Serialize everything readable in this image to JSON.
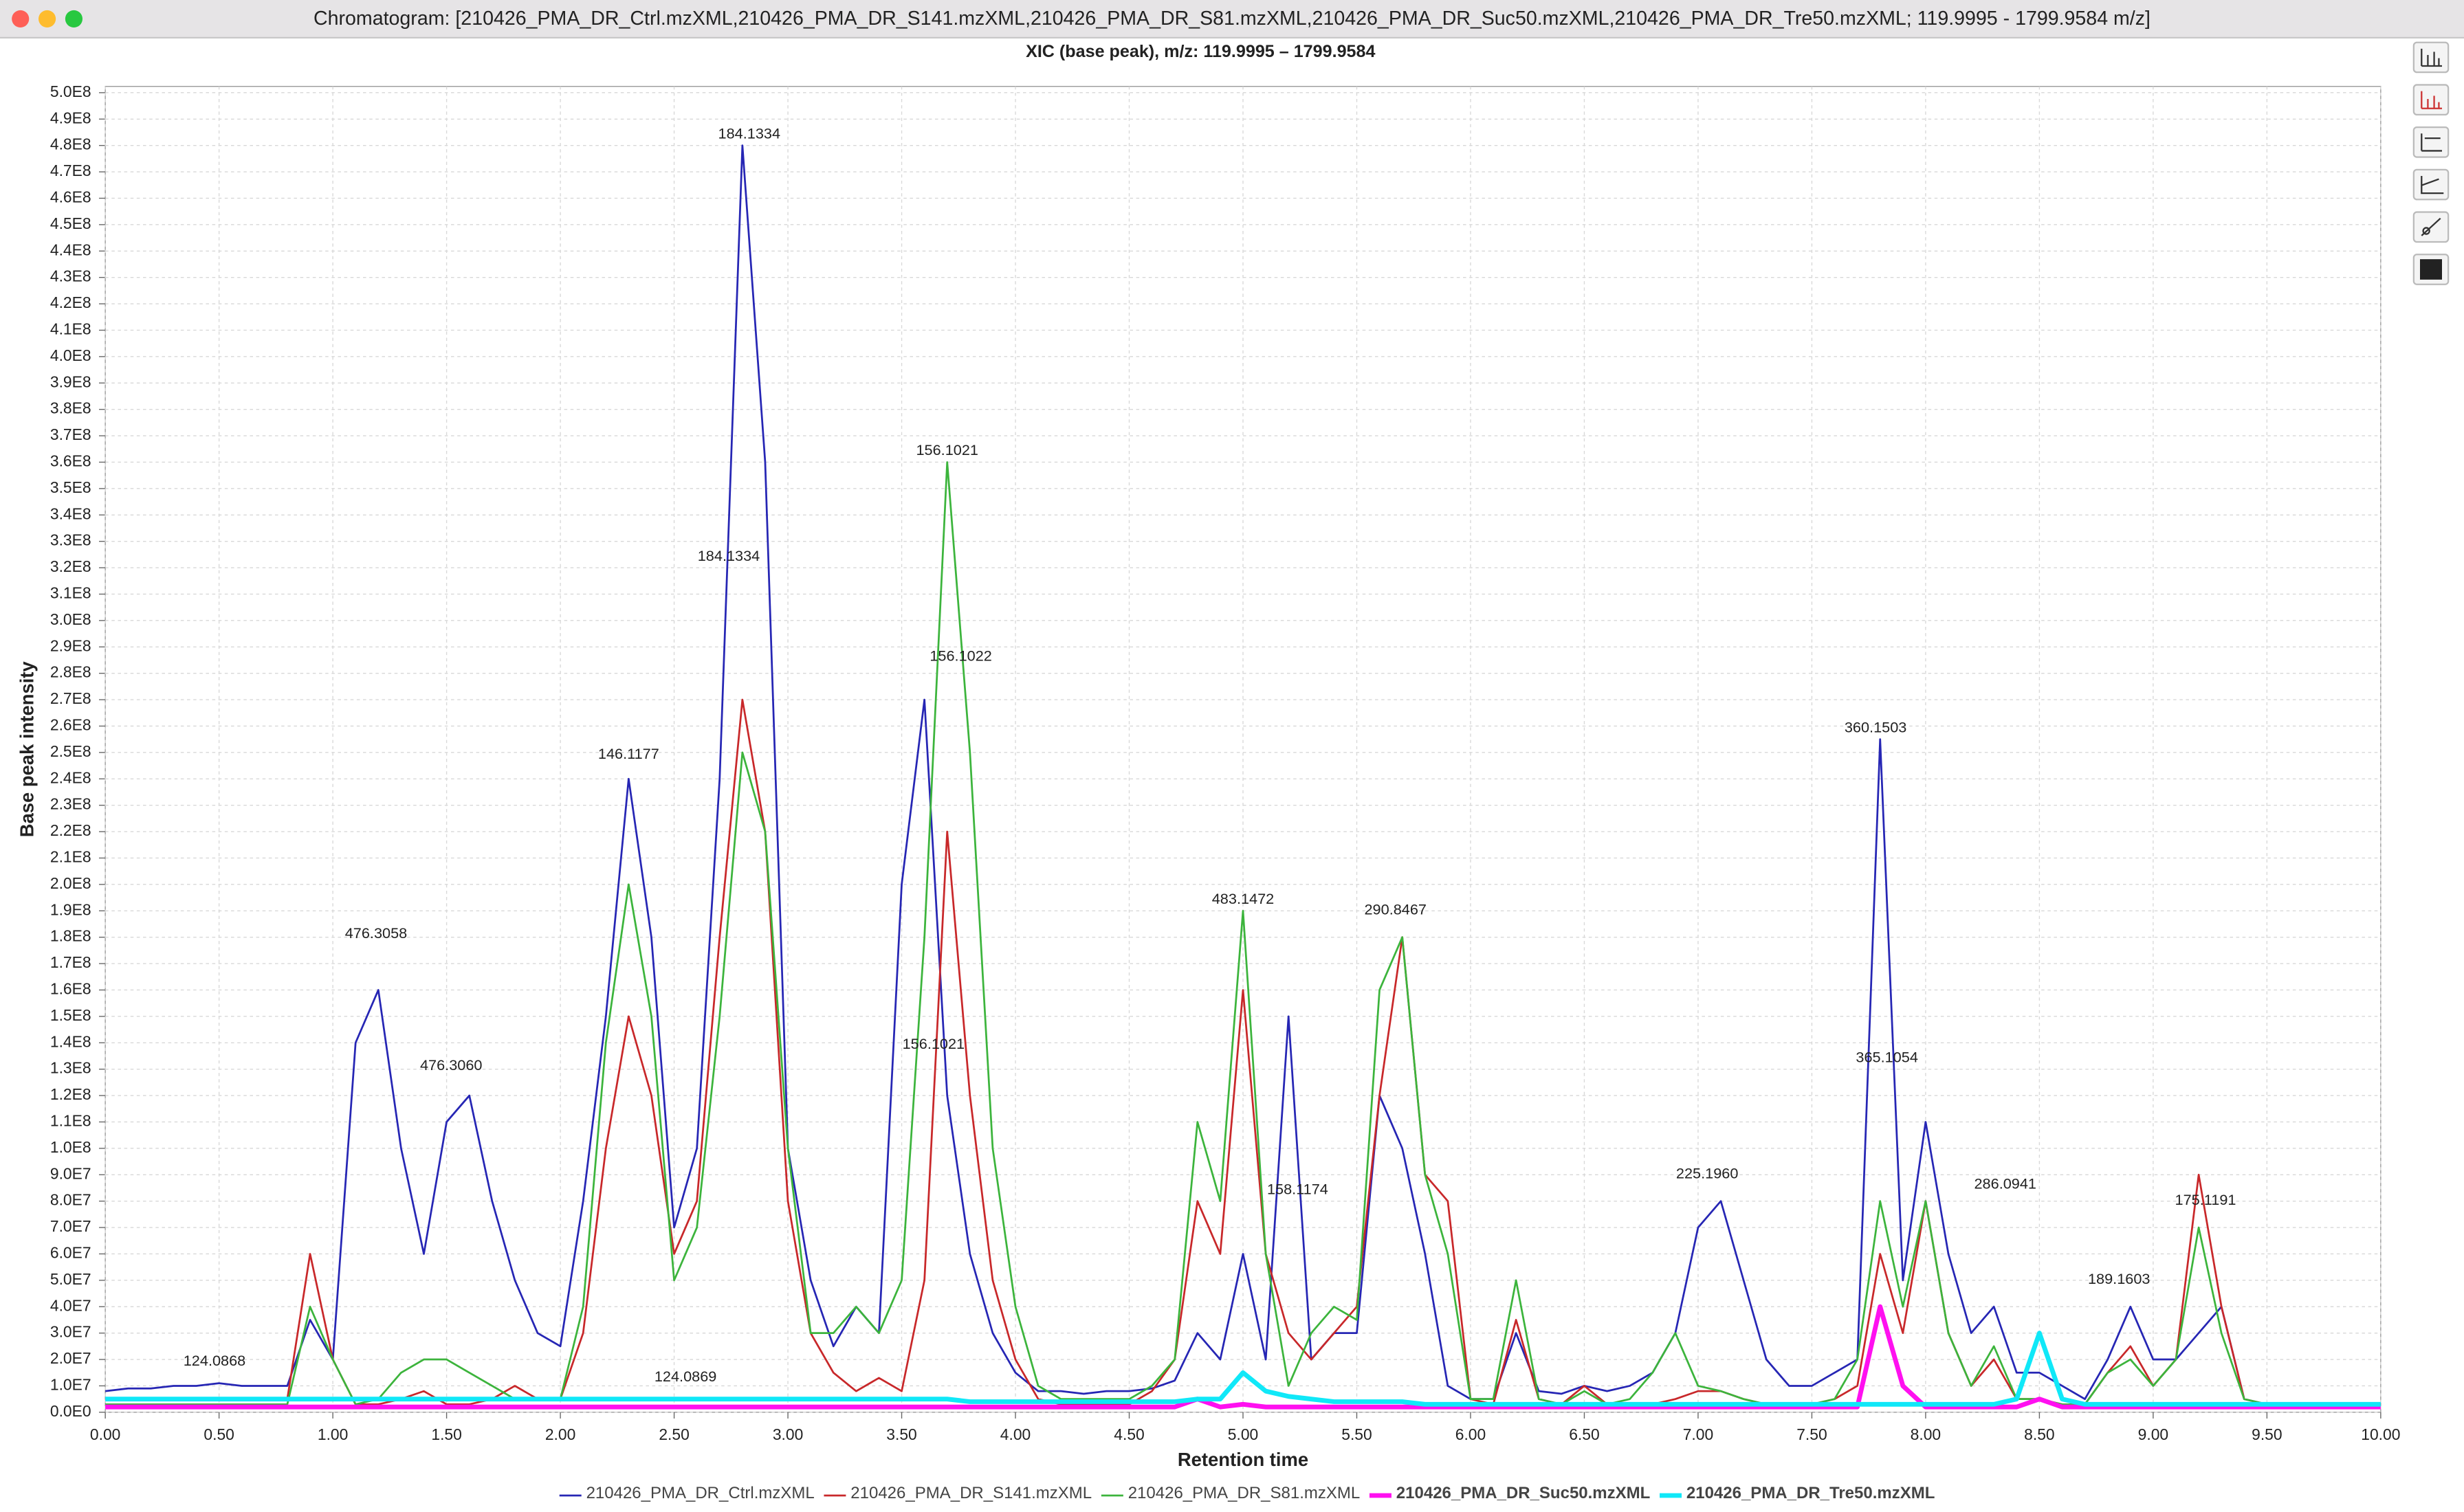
{
  "window": {
    "title": "Chromatogram: [210426_PMA_DR_Ctrl.mzXML,210426_PMA_DR_S141.mzXML,210426_PMA_DR_S81.mzXML,210426_PMA_DR_Suc50.mzXML,210426_PMA_DR_Tre50.mzXML; 119.9995 - 1799.9584 m/z]"
  },
  "chart_data": {
    "type": "line",
    "title": "XIC (base peak), m/z: 119.9995 – 1799.9584",
    "x_label": "Retention time",
    "y_label": "Base peak intensity",
    "grid": true,
    "legend": "bottom",
    "x": [
      0,
      0.1,
      0.2,
      0.3,
      0.4,
      0.5,
      0.6,
      0.7,
      0.8,
      0.9,
      1,
      1.1,
      1.2,
      1.3,
      1.4,
      1.5,
      1.6,
      1.7,
      1.8,
      1.9,
      2,
      2.1,
      2.2,
      2.3,
      2.4,
      2.5,
      2.6,
      2.7,
      2.8,
      2.9,
      3,
      3.1,
      3.2,
      3.3,
      3.4,
      3.5,
      3.6,
      3.7,
      3.8,
      3.9,
      4,
      4.1,
      4.2,
      4.3,
      4.4,
      4.5,
      4.6,
      4.7,
      4.8,
      4.9,
      5,
      5.1,
      5.2,
      5.3,
      5.4,
      5.5,
      5.6,
      5.7,
      5.8,
      5.9,
      6,
      6.1,
      6.2,
      6.3,
      6.4,
      6.5,
      6.6,
      6.7,
      6.8,
      6.9,
      7,
      7.1,
      7.2,
      7.3,
      7.4,
      7.5,
      7.6,
      7.7,
      7.8,
      7.9,
      8,
      8.1,
      8.2,
      8.3,
      8.4,
      8.5,
      8.6,
      8.7,
      8.8,
      8.9,
      9,
      9.1,
      9.2,
      9.3,
      9.4,
      9.5,
      9.6,
      9.7,
      9.8,
      9.9,
      10
    ],
    "series": [
      {
        "name": "210426_PMA_DR_Ctrl.mzXML",
        "color": "#2626b4",
        "width": 1.2,
        "values": [
          8000000.0,
          9000000.0,
          9000000.0,
          10000000.0,
          10000000.0,
          11000000.0,
          10000000.0,
          10000000.0,
          10000000.0,
          35000000.0,
          20000000.0,
          140000000.0,
          160000000.0,
          100000000.0,
          60000000.0,
          110000000.0,
          120000000.0,
          80000000.0,
          50000000.0,
          30000000.0,
          25000000.0,
          80000000.0,
          150000000.0,
          240000000.0,
          180000000.0,
          70000000.0,
          100000000.0,
          240000000.0,
          480000000.0,
          360000000.0,
          100000000.0,
          50000000.0,
          25000000.0,
          40000000.0,
          30000000.0,
          200000000.0,
          270000000.0,
          120000000.0,
          60000000.0,
          30000000.0,
          15000000.0,
          8000000.0,
          8000000.0,
          7000000.0,
          8000000.0,
          8000000.0,
          9000000.0,
          12000000.0,
          30000000.0,
          20000000.0,
          60000000.0,
          20000000.0,
          150000000.0,
          20000000.0,
          30000000.0,
          30000000.0,
          120000000.0,
          100000000.0,
          60000000.0,
          10000000.0,
          5000000.0,
          5000000.0,
          30000000.0,
          8000000.0,
          7000000.0,
          10000000.0,
          8000000.0,
          10000000.0,
          15000000.0,
          30000000.0,
          70000000.0,
          80000000.0,
          50000000.0,
          20000000.0,
          10000000.0,
          10000000.0,
          15000000.0,
          20000000.0,
          255000000.0,
          50000000.0,
          110000000.0,
          60000000.0,
          30000000.0,
          40000000.0,
          15000000.0,
          15000000.0,
          10000000.0,
          5000000.0,
          20000000.0,
          40000000.0,
          20000000.0,
          20000000.0,
          30000000.0,
          40000000.0,
          5000000.0,
          3000000.0,
          3000000.0,
          3000000.0,
          3000000.0,
          3000000.0,
          3000000.0
        ]
      },
      {
        "name": "210426_PMA_DR_S141.mzXML",
        "color": "#c8282a",
        "width": 1.2,
        "values": [
          5000000.0,
          5000000.0,
          5000000.0,
          5000000.0,
          5000000.0,
          5000000.0,
          5000000.0,
          5000000.0,
          5000000.0,
          60000000.0,
          20000000.0,
          3000000.0,
          3000000.0,
          5000000.0,
          8000000.0,
          3000000.0,
          3000000.0,
          5000000.0,
          10000000.0,
          5000000.0,
          5000000.0,
          30000000.0,
          100000000.0,
          150000000.0,
          120000000.0,
          60000000.0,
          80000000.0,
          180000000.0,
          270000000.0,
          220000000.0,
          80000000.0,
          30000000.0,
          15000000.0,
          8000000.0,
          13000000.0,
          8000000.0,
          50000000.0,
          220000000.0,
          120000000.0,
          50000000.0,
          20000000.0,
          5000000.0,
          3000000.0,
          3000000.0,
          3000000.0,
          3000000.0,
          8000000.0,
          20000000.0,
          80000000.0,
          60000000.0,
          160000000.0,
          60000000.0,
          30000000.0,
          20000000.0,
          30000000.0,
          40000000.0,
          120000000.0,
          180000000.0,
          90000000.0,
          80000000.0,
          5000000.0,
          3000000.0,
          35000000.0,
          5000000.0,
          3000000.0,
          10000000.0,
          3000000.0,
          3000000.0,
          3000000.0,
          5000000.0,
          8000000.0,
          8000000.0,
          5000000.0,
          3000000.0,
          3000000.0,
          3000000.0,
          5000000.0,
          10000000.0,
          60000000.0,
          30000000.0,
          80000000.0,
          30000000.0,
          10000000.0,
          20000000.0,
          5000000.0,
          5000000.0,
          3000000.0,
          3000000.0,
          15000000.0,
          25000000.0,
          10000000.0,
          20000000.0,
          90000000.0,
          40000000.0,
          5000000.0,
          3000000.0,
          3000000.0,
          3000000.0,
          3000000.0,
          3000000.0,
          3000000.0
        ]
      },
      {
        "name": "210426_PMA_DR_S81.mzXML",
        "color": "#3cb43c",
        "width": 1.2,
        "values": [
          3000000.0,
          3000000.0,
          3000000.0,
          3000000.0,
          3000000.0,
          3000000.0,
          3000000.0,
          3000000.0,
          3000000.0,
          40000000.0,
          20000000.0,
          3000000.0,
          5000000.0,
          15000000.0,
          20000000.0,
          20000000.0,
          15000000.0,
          10000000.0,
          5000000.0,
          5000000.0,
          5000000.0,
          40000000.0,
          140000000.0,
          200000000.0,
          150000000.0,
          50000000.0,
          70000000.0,
          150000000.0,
          250000000.0,
          220000000.0,
          100000000.0,
          30000000.0,
          30000000.0,
          40000000.0,
          30000000.0,
          50000000.0,
          180000000.0,
          360000000.0,
          250000000.0,
          100000000.0,
          40000000.0,
          10000000.0,
          5000000.0,
          5000000.0,
          5000000.0,
          5000000.0,
          10000000.0,
          20000000.0,
          110000000.0,
          80000000.0,
          190000000.0,
          60000000.0,
          10000000.0,
          30000000.0,
          40000000.0,
          35000000.0,
          160000000.0,
          180000000.0,
          90000000.0,
          60000000.0,
          5000000.0,
          5000000.0,
          50000000.0,
          5000000.0,
          3000000.0,
          8000000.0,
          3000000.0,
          5000000.0,
          15000000.0,
          30000000.0,
          10000000.0,
          8000000.0,
          5000000.0,
          3000000.0,
          3000000.0,
          3000000.0,
          5000000.0,
          20000000.0,
          80000000.0,
          40000000.0,
          80000000.0,
          30000000.0,
          10000000.0,
          25000000.0,
          5000000.0,
          5000000.0,
          3000000.0,
          3000000.0,
          15000000.0,
          20000000.0,
          10000000.0,
          20000000.0,
          70000000.0,
          30000000.0,
          5000000.0,
          3000000.0,
          3000000.0,
          3000000.0,
          3000000.0,
          3000000.0,
          3000000.0
        ]
      },
      {
        "name": "210426_PMA_DR_Suc50.mzXML",
        "color": "#ff10f0",
        "width": 3,
        "values": [
          2000000.0,
          2000000.0,
          2000000.0,
          2000000.0,
          2000000.0,
          2000000.0,
          2000000.0,
          2000000.0,
          2000000.0,
          2000000.0,
          2000000.0,
          2000000.0,
          2000000.0,
          2000000.0,
          2000000.0,
          2000000.0,
          2000000.0,
          2000000.0,
          2000000.0,
          2000000.0,
          2000000.0,
          2000000.0,
          2000000.0,
          2000000.0,
          2000000.0,
          2000000.0,
          2000000.0,
          2000000.0,
          2000000.0,
          2000000.0,
          2000000.0,
          2000000.0,
          2000000.0,
          2000000.0,
          2000000.0,
          2000000.0,
          2000000.0,
          2000000.0,
          2000000.0,
          2000000.0,
          2000000.0,
          2000000.0,
          2000000.0,
          2000000.0,
          2000000.0,
          2000000.0,
          2000000.0,
          2000000.0,
          5000000.0,
          2000000.0,
          3000000.0,
          2000000.0,
          2000000.0,
          2000000.0,
          2000000.0,
          2000000.0,
          2000000.0,
          2000000.0,
          2000000.0,
          2000000.0,
          2000000.0,
          2000000.0,
          2000000.0,
          2000000.0,
          2000000.0,
          2000000.0,
          2000000.0,
          2000000.0,
          2000000.0,
          2000000.0,
          2000000.0,
          2000000.0,
          2000000.0,
          2000000.0,
          2000000.0,
          2000000.0,
          2000000.0,
          2000000.0,
          40000000.0,
          10000000.0,
          2000000.0,
          2000000.0,
          2000000.0,
          2000000.0,
          2000000.0,
          5000000.0,
          2000000.0,
          2000000.0,
          2000000.0,
          2000000.0,
          2000000.0,
          2000000.0,
          2000000.0,
          2000000.0,
          2000000.0,
          2000000.0,
          2000000.0,
          2000000.0,
          2000000.0,
          2000000.0,
          2000000.0
        ]
      },
      {
        "name": "210426_PMA_DR_Tre50.mzXML",
        "color": "#10e8f8",
        "width": 3,
        "values": [
          5000000.0,
          5000000.0,
          5000000.0,
          5000000.0,
          5000000.0,
          5000000.0,
          5000000.0,
          5000000.0,
          5000000.0,
          5000000.0,
          5000000.0,
          5000000.0,
          5000000.0,
          5000000.0,
          5000000.0,
          5000000.0,
          5000000.0,
          5000000.0,
          5000000.0,
          5000000.0,
          5000000.0,
          5000000.0,
          5000000.0,
          5000000.0,
          5000000.0,
          5000000.0,
          5000000.0,
          5000000.0,
          5000000.0,
          5000000.0,
          5000000.0,
          5000000.0,
          5000000.0,
          5000000.0,
          5000000.0,
          5000000.0,
          5000000.0,
          5000000.0,
          4000000.0,
          4000000.0,
          4000000.0,
          4000000.0,
          4000000.0,
          4000000.0,
          4000000.0,
          4000000.0,
          4000000.0,
          4000000.0,
          5000000.0,
          5000000.0,
          15000000.0,
          8000000.0,
          6000000.0,
          5000000.0,
          4000000.0,
          4000000.0,
          4000000.0,
          4000000.0,
          3000000.0,
          3000000.0,
          3000000.0,
          3000000.0,
          3000000.0,
          3000000.0,
          3000000.0,
          3000000.0,
          3000000.0,
          3000000.0,
          3000000.0,
          3000000.0,
          3000000.0,
          3000000.0,
          3000000.0,
          3000000.0,
          3000000.0,
          3000000.0,
          3000000.0,
          3000000.0,
          3000000.0,
          3000000.0,
          3000000.0,
          3000000.0,
          3000000.0,
          3000000.0,
          5000000.0,
          30000000.0,
          5000000.0,
          3000000.0,
          3000000.0,
          3000000.0,
          3000000.0,
          3000000.0,
          3000000.0,
          3000000.0,
          3000000.0,
          3000000.0,
          3000000.0,
          3000000.0,
          3000000.0,
          3000000.0,
          3000000.0
        ]
      }
    ],
    "annotations": [
      {
        "text": "124.0868",
        "x": 0.48,
        "y": 15000000.0
      },
      {
        "text": "476.3058",
        "x": 1.19,
        "y": 177000000.0
      },
      {
        "text": "476.3060",
        "x": 1.52,
        "y": 127000000.0
      },
      {
        "text": "146.1177",
        "x": 2.3,
        "y": 245000000.0
      },
      {
        "text": "184.1334",
        "x": 2.83,
        "y": 480000000.0
      },
      {
        "text": "184.1334",
        "x": 2.74,
        "y": 320000000.0
      },
      {
        "text": "124.0869",
        "x": 2.55,
        "y": 9000000.0
      },
      {
        "text": "156.1021",
        "x": 3.7,
        "y": 360000000.0
      },
      {
        "text": "156.1022",
        "x": 3.76,
        "y": 282000000.0
      },
      {
        "text": "156.1021",
        "x": 3.64,
        "y": 135000000.0
      },
      {
        "text": "483.1472",
        "x": 5.0,
        "y": 190000000.0
      },
      {
        "text": "158.1174",
        "x": 5.24,
        "y": 80000000.0
      },
      {
        "text": "290.8467",
        "x": 5.67,
        "y": 186000000.0
      },
      {
        "text": "225.1960",
        "x": 7.04,
        "y": 86000000.0
      },
      {
        "text": "360.1503",
        "x": 7.78,
        "y": 255000000.0
      },
      {
        "text": "365.1054",
        "x": 7.83,
        "y": 130000000.0
      },
      {
        "text": "286.0941",
        "x": 8.35,
        "y": 82000000.0
      },
      {
        "text": "189.1603",
        "x": 8.85,
        "y": 46000000.0
      },
      {
        "text": "175.1191",
        "x": 9.23,
        "y": 76000000.0
      }
    ],
    "xlim": [
      0,
      10
    ],
    "xticks": [
      {
        "value": 0,
        "label": "0.00"
      },
      {
        "value": 0.5,
        "label": "0.50"
      },
      {
        "value": 1,
        "label": "1.00"
      },
      {
        "value": 1.5,
        "label": "1.50"
      },
      {
        "value": 2,
        "label": "2.00"
      },
      {
        "value": 2.5,
        "label": "2.50"
      },
      {
        "value": 3,
        "label": "3.00"
      },
      {
        "value": 3.5,
        "label": "3.50"
      },
      {
        "value": 4,
        "label": "4.00"
      },
      {
        "value": 4.5,
        "label": "4.50"
      },
      {
        "value": 5,
        "label": "5.00"
      },
      {
        "value": 5.5,
        "label": "5.50"
      },
      {
        "value": 6,
        "label": "6.00"
      },
      {
        "value": 6.5,
        "label": "6.50"
      },
      {
        "value": 7,
        "label": "7.00"
      },
      {
        "value": 7.5,
        "label": "7.50"
      },
      {
        "value": 8,
        "label": "8.00"
      },
      {
        "value": 8.5,
        "label": "8.50"
      },
      {
        "value": 9,
        "label": "9.00"
      },
      {
        "value": 9.5,
        "label": "9.50"
      },
      {
        "value": 10,
        "label": "10.00"
      }
    ],
    "ylim": [
      0,
      500000000.0
    ],
    "yticks": [
      {
        "value": 0,
        "label": "0.0E0"
      },
      {
        "value": 10000000.0,
        "label": "1.0E7"
      },
      {
        "value": 20000000.0,
        "label": "2.0E7"
      },
      {
        "value": 30000000.0,
        "label": "3.0E7"
      },
      {
        "value": 40000000.0,
        "label": "4.0E7"
      },
      {
        "value": 50000000.0,
        "label": "5.0E7"
      },
      {
        "value": 60000000.0,
        "label": "6.0E7"
      },
      {
        "value": 70000000.0,
        "label": "7.0E7"
      },
      {
        "value": 80000000.0,
        "label": "8.0E7"
      },
      {
        "value": 90000000.0,
        "label": "9.0E7"
      },
      {
        "value": 100000000.0,
        "label": "1.0E8"
      },
      {
        "value": 110000000.0,
        "label": "1.1E8"
      },
      {
        "value": 120000000.0,
        "label": "1.2E8"
      },
      {
        "value": 130000000.0,
        "label": "1.3E8"
      },
      {
        "value": 140000000.0,
        "label": "1.4E8"
      },
      {
        "value": 150000000.0,
        "label": "1.5E8"
      },
      {
        "value": 160000000.0,
        "label": "1.6E8"
      },
      {
        "value": 170000000.0,
        "label": "1.7E8"
      },
      {
        "value": 180000000.0,
        "label": "1.8E8"
      },
      {
        "value": 190000000.0,
        "label": "1.9E8"
      },
      {
        "value": 200000000.0,
        "label": "2.0E8"
      },
      {
        "value": 210000000.0,
        "label": "2.1E8"
      },
      {
        "value": 220000000.0,
        "label": "2.2E8"
      },
      {
        "value": 230000000.0,
        "label": "2.3E8"
      },
      {
        "value": 240000000.0,
        "label": "2.4E8"
      },
      {
        "value": 250000000.0,
        "label": "2.5E8"
      },
      {
        "value": 260000000.0,
        "label": "2.6E8"
      },
      {
        "value": 270000000.0,
        "label": "2.7E8"
      },
      {
        "value": 280000000.0,
        "label": "2.8E8"
      },
      {
        "value": 290000000.0,
        "label": "2.9E8"
      },
      {
        "value": 300000000.0,
        "label": "3.0E8"
      },
      {
        "value": 310000000.0,
        "label": "3.1E8"
      },
      {
        "value": 320000000.0,
        "label": "3.2E8"
      },
      {
        "value": 330000000.0,
        "label": "3.3E8"
      },
      {
        "value": 340000000.0,
        "label": "3.4E8"
      },
      {
        "value": 350000000.0,
        "label": "3.5E8"
      },
      {
        "value": 360000000.0,
        "label": "3.6E8"
      },
      {
        "value": 370000000.0,
        "label": "3.7E8"
      },
      {
        "value": 380000000.0,
        "label": "3.8E8"
      },
      {
        "value": 390000000.0,
        "label": "3.9E8"
      },
      {
        "value": 400000000.0,
        "label": "4.0E8"
      },
      {
        "value": 410000000.0,
        "label": "4.1E8"
      },
      {
        "value": 420000000.0,
        "label": "4.2E8"
      },
      {
        "value": 430000000.0,
        "label": "4.3E8"
      },
      {
        "value": 440000000.0,
        "label": "4.4E8"
      },
      {
        "value": 450000000.0,
        "label": "4.5E8"
      },
      {
        "value": 460000000.0,
        "label": "4.6E8"
      },
      {
        "value": 470000000.0,
        "label": "4.7E8"
      },
      {
        "value": 480000000.0,
        "label": "4.8E8"
      },
      {
        "value": 490000000.0,
        "label": "4.9E8"
      },
      {
        "value": 500000000.0,
        "label": "5.0E8"
      }
    ]
  }
}
